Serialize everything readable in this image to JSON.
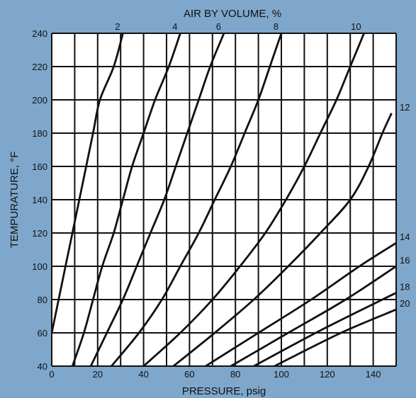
{
  "colors": {
    "background": "#7fa7cc",
    "plot_area": "#ffffff",
    "grid": "#111111",
    "curve": "#111111"
  },
  "chart_data": {
    "type": "line",
    "title": "",
    "top_label": "AIR BY VOLUME, %",
    "xlabel": "PRESSURE, psig",
    "ylabel": "TEMPURATURE, °F",
    "xlim": [
      0,
      150
    ],
    "ylim": [
      40,
      240
    ],
    "xticks": [
      "0",
      "20",
      "40",
      "60",
      "80",
      "100",
      "120",
      "140"
    ],
    "yticks": [
      "40",
      "60",
      "80",
      "100",
      "120",
      "140",
      "160",
      "180",
      "200",
      "220",
      "240"
    ],
    "grid": true,
    "series": [
      {
        "name": "2",
        "points": [
          [
            0,
            60
          ],
          [
            3,
            80
          ],
          [
            6,
            100
          ],
          [
            9,
            120
          ],
          [
            12,
            140
          ],
          [
            15,
            160
          ],
          [
            18,
            180
          ],
          [
            21,
            200
          ],
          [
            27,
            220
          ],
          [
            31,
            240
          ]
        ]
      },
      {
        "name": "4",
        "points": [
          [
            9,
            40
          ],
          [
            14,
            60
          ],
          [
            18,
            80
          ],
          [
            22,
            100
          ],
          [
            27,
            120
          ],
          [
            31,
            140
          ],
          [
            35,
            160
          ],
          [
            40,
            180
          ],
          [
            45,
            200
          ],
          [
            51,
            220
          ],
          [
            56,
            240
          ]
        ]
      },
      {
        "name": "6",
        "points": [
          [
            17,
            40
          ],
          [
            24,
            60
          ],
          [
            31,
            80
          ],
          [
            37,
            100
          ],
          [
            43,
            120
          ],
          [
            49,
            140
          ],
          [
            54,
            160
          ],
          [
            59,
            180
          ],
          [
            64,
            200
          ],
          [
            69,
            220
          ],
          [
            75,
            240
          ]
        ]
      },
      {
        "name": "8",
        "points": [
          [
            26,
            40
          ],
          [
            38,
            60
          ],
          [
            48,
            80
          ],
          [
            56,
            100
          ],
          [
            64,
            120
          ],
          [
            71,
            140
          ],
          [
            78,
            160
          ],
          [
            84,
            180
          ],
          [
            90,
            200
          ],
          [
            95,
            220
          ],
          [
            100,
            240
          ]
        ]
      },
      {
        "name": "10",
        "points": [
          [
            40,
            40
          ],
          [
            56,
            60
          ],
          [
            70,
            80
          ],
          [
            82,
            100
          ],
          [
            93,
            120
          ],
          [
            102,
            140
          ],
          [
            110,
            160
          ],
          [
            117,
            180
          ],
          [
            124,
            200
          ],
          [
            130,
            220
          ],
          [
            136,
            240
          ]
        ]
      },
      {
        "name": "12",
        "points": [
          [
            53,
            40
          ],
          [
            71,
            60
          ],
          [
            88,
            80
          ],
          [
            103,
            100
          ],
          [
            117,
            120
          ],
          [
            130,
            140
          ],
          [
            138,
            160
          ],
          [
            144,
            180
          ],
          [
            148,
            192
          ]
        ]
      },
      {
        "name": "14",
        "points": [
          [
            67,
            40
          ],
          [
            90,
            60
          ],
          [
            113,
            80
          ],
          [
            134,
            100
          ],
          [
            150,
            114
          ]
        ]
      },
      {
        "name": "16",
        "points": [
          [
            78,
            40
          ],
          [
            103,
            60
          ],
          [
            128,
            80
          ],
          [
            150,
            100
          ]
        ]
      },
      {
        "name": "18",
        "points": [
          [
            88,
            40
          ],
          [
            115,
            60
          ],
          [
            144,
            80
          ],
          [
            150,
            84
          ]
        ]
      },
      {
        "name": "20",
        "points": [
          [
            97,
            40
          ],
          [
            126,
            60
          ],
          [
            150,
            74
          ]
        ]
      }
    ]
  }
}
